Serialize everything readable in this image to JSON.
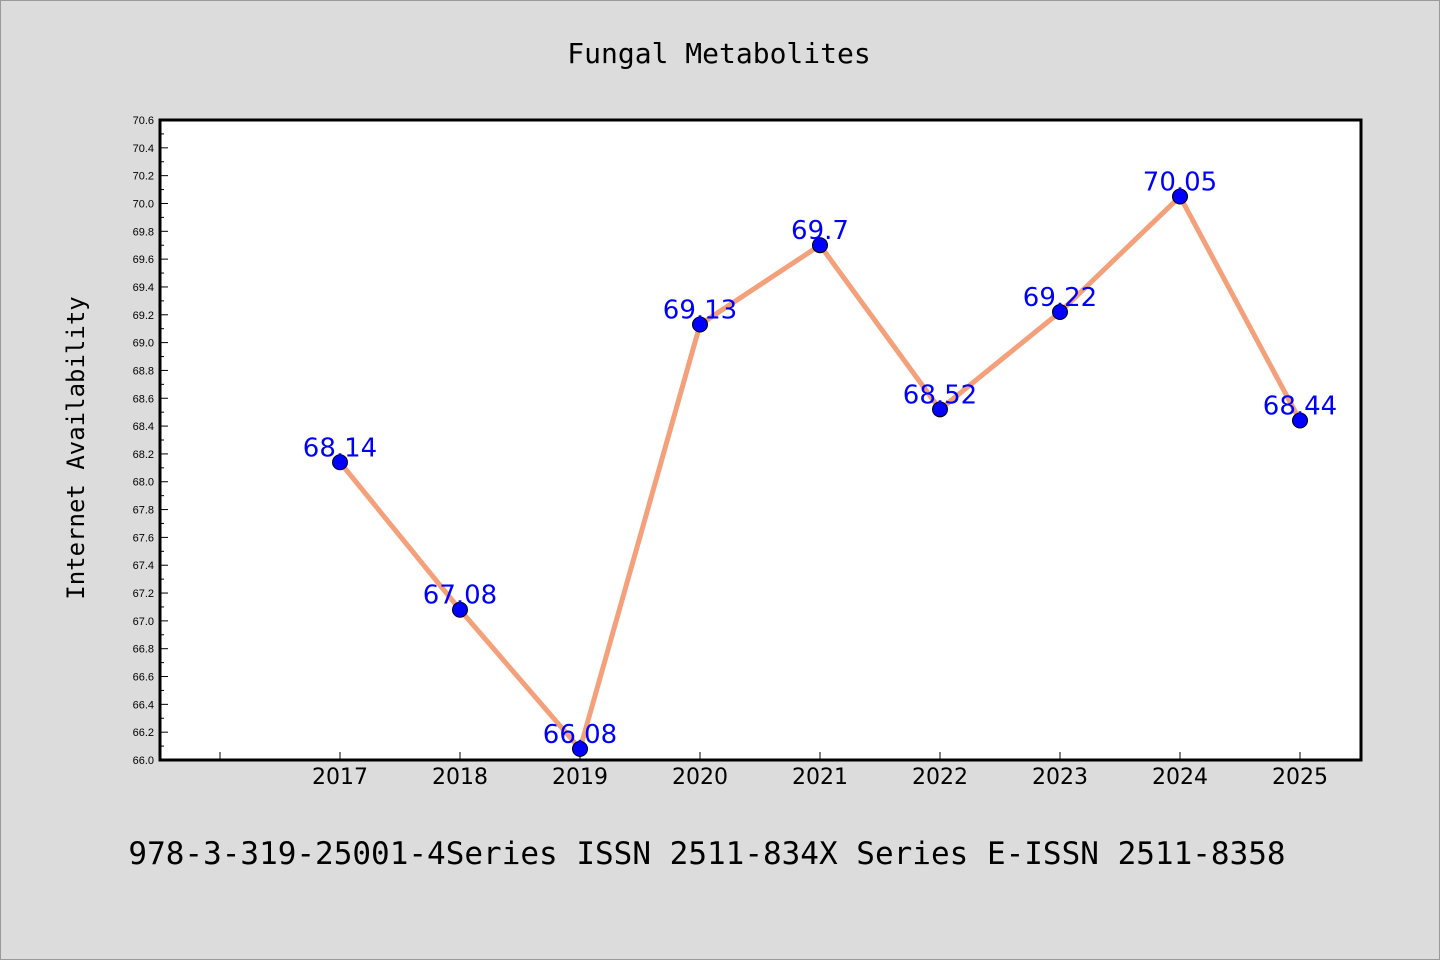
{
  "colors": {
    "background": "#dcdcdc",
    "plot_background": "#ffffff",
    "line": "#f4a07a",
    "marker": "#0000ff",
    "data_label": "#0000ff"
  },
  "chart_data": {
    "type": "line",
    "title": "Fungal Metabolites",
    "xlabel": "",
    "ylabel": "Internet Availability",
    "categories": [
      "2017",
      "2018",
      "2019",
      "2020",
      "2021",
      "2022",
      "2023",
      "2024",
      "2025"
    ],
    "series": [
      {
        "values": [
          68.14,
          67.08,
          66.08,
          69.13,
          69.7,
          68.52,
          69.22,
          70.05,
          68.44
        ],
        "labels": [
          "68.14",
          "67.08",
          "66.08",
          "69.13",
          "69.7",
          "68.52",
          "69.22",
          "70.05",
          "68.44"
        ]
      }
    ],
    "ylim": [
      66.0,
      70.6
    ],
    "y_ticks": [
      "66.0",
      "66.2",
      "66.4",
      "66.6",
      "66.8",
      "67.0",
      "67.2",
      "67.4",
      "67.6",
      "67.8",
      "68.0",
      "68.2",
      "68.4",
      "68.6",
      "68.8",
      "69.0",
      "69.2",
      "69.4",
      "69.6",
      "69.8",
      "70.0",
      "70.2",
      "70.4",
      "70.6"
    ],
    "grid": false,
    "legend": "none"
  },
  "footer": {
    "text": "978-3-319-25001-4Series ISSN 2511-834X Series E-ISSN 2511-8358"
  }
}
